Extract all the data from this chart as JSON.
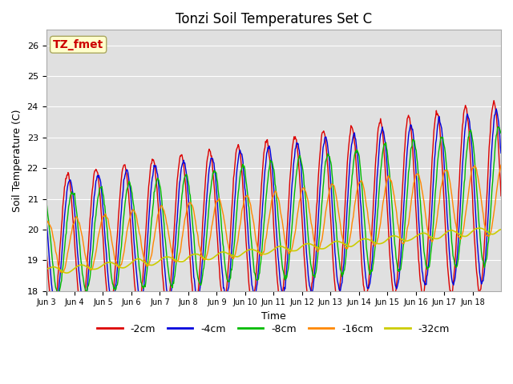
{
  "title": "Tonzi Soil Temperatures Set C",
  "xlabel": "Time",
  "ylabel": "Soil Temperature (C)",
  "ylim": [
    18.0,
    26.5
  ],
  "yticks": [
    18.0,
    19.0,
    20.0,
    21.0,
    22.0,
    23.0,
    24.0,
    25.0,
    26.0
  ],
  "xtick_labels": [
    "Jun 3",
    "Jun 4",
    "Jun 5",
    "Jun 6",
    "Jun 7",
    "Jun 8",
    "Jun 9",
    "Jun 10",
    "Jun 11",
    "Jun 12",
    "Jun 13",
    "Jun 14",
    "Jun 15",
    "Jun 16",
    "Jun 17",
    "Jun 18"
  ],
  "series_labels": [
    "-2cm",
    "-4cm",
    "-8cm",
    "-16cm",
    "-32cm"
  ],
  "series_colors": [
    "#dd0000",
    "#0000dd",
    "#00bb00",
    "#ff8800",
    "#cccc00"
  ],
  "annotation_text": "TZ_fmet",
  "annotation_color": "#cc0000",
  "annotation_bg": "#ffffcc",
  "background_color": "#e0e0e0",
  "n_days": 16,
  "points_per_day": 48,
  "grid_color": "#ffffff",
  "title_fontsize": 12,
  "figsize": [
    6.4,
    4.8
  ],
  "dpi": 100
}
